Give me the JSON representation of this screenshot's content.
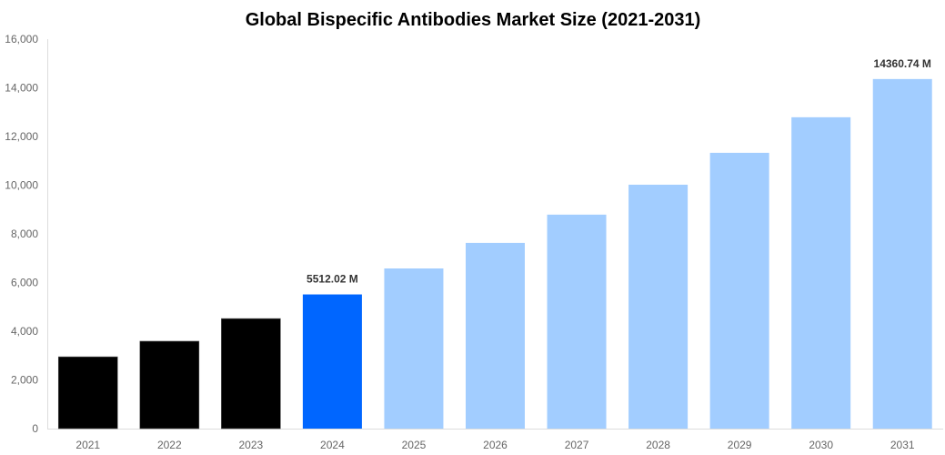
{
  "chart_data": {
    "type": "bar",
    "title": "Global Bispecific Antibodies Market Size (2021-2031)",
    "xlabel": "",
    "ylabel": "",
    "categories": [
      "2021",
      "2022",
      "2023",
      "2024",
      "2025",
      "2026",
      "2027",
      "2028",
      "2029",
      "2030",
      "2031"
    ],
    "values": [
      2950,
      3590,
      4520,
      5512.02,
      6580,
      7630,
      8790,
      10020,
      11330,
      12790,
      14360.74
    ],
    "bar_colors": [
      "#000000",
      "#000000",
      "#000000",
      "#0066ff",
      "#a2cdff",
      "#a2cdff",
      "#a2cdff",
      "#a2cdff",
      "#a2cdff",
      "#a2cdff",
      "#a2cdff"
    ],
    "data_labels": [
      {
        "category": "2024",
        "text": "5512.02 M"
      },
      {
        "category": "2031",
        "text": "14360.74 M"
      }
    ],
    "ylim": [
      0,
      16000
    ],
    "yticks": [
      "0",
      "2,000",
      "4,000",
      "6,000",
      "8,000",
      "10,000",
      "12,000",
      "14,000",
      "16,000"
    ],
    "grid": false,
    "legend": "none"
  }
}
